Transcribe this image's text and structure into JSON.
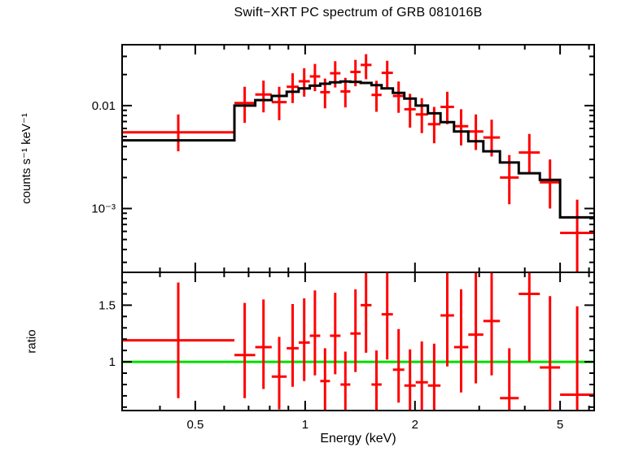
{
  "chart_data": [
    {
      "type": "scatter",
      "panel": "spectrum",
      "title": "Swift−XRT PC spectrum of GRB 081016B",
      "xlabel": "",
      "ylabel": "counts s⁻¹ keV⁻¹",
      "xscale": "log",
      "yscale": "log",
      "xlim": [
        0.315,
        6.2
      ],
      "ylim": [
        0.00024,
        0.039
      ],
      "x_ticks": [
        0.5,
        1,
        2,
        5
      ],
      "x_tick_labels": [
        "0.5",
        "1",
        "2",
        "5"
      ],
      "x_minor_ticks": [
        0.4,
        0.6,
        0.7,
        0.8,
        0.9,
        3,
        4,
        6
      ],
      "y_ticks": [
        0.001,
        0.01
      ],
      "y_tick_labels": [
        "10⁻³",
        "0.01"
      ],
      "y_minor_ticks": [
        0.0003,
        0.0004,
        0.0005,
        0.0006,
        0.0007,
        0.0008,
        0.0009,
        0.002,
        0.003,
        0.004,
        0.005,
        0.006,
        0.007,
        0.008,
        0.009,
        0.02,
        0.03
      ],
      "grid": false,
      "legend": null,
      "colors": {
        "data": "#ff0000",
        "model": "#000000"
      },
      "series": [
        {
          "name": "data",
          "style": "errorbar",
          "color": "#ff0000",
          "points": [
            [
              0.449,
              0.315,
              0.64,
              0.0055,
              0.0036,
              0.0082
            ],
            [
              0.683,
              0.64,
              0.73,
              0.0106,
              0.0068,
              0.0152
            ],
            [
              0.769,
              0.73,
              0.81,
              0.0128,
              0.0086,
              0.0175
            ],
            [
              0.849,
              0.81,
              0.89,
              0.0108,
              0.0072,
              0.0152
            ],
            [
              0.924,
              0.89,
              0.96,
              0.0152,
              0.0106,
              0.0206
            ],
            [
              0.994,
              0.96,
              1.03,
              0.0172,
              0.0122,
              0.023
            ],
            [
              1.064,
              1.03,
              1.1,
              0.0192,
              0.0138,
              0.0254
            ],
            [
              1.134,
              1.1,
              1.17,
              0.0135,
              0.0094,
              0.0183
            ],
            [
              1.209,
              1.17,
              1.25,
              0.0206,
              0.015,
              0.027
            ],
            [
              1.289,
              1.25,
              1.33,
              0.0137,
              0.0096,
              0.0186
            ],
            [
              1.374,
              1.33,
              1.42,
              0.0212,
              0.0154,
              0.0278
            ],
            [
              1.469,
              1.42,
              1.52,
              0.0248,
              0.018,
              0.0316
            ],
            [
              1.569,
              1.52,
              1.62,
              0.0127,
              0.0087,
              0.0174
            ],
            [
              1.679,
              1.62,
              1.74,
              0.0208,
              0.015,
              0.0272
            ],
            [
              1.804,
              1.74,
              1.87,
              0.0124,
              0.0085,
              0.0171
            ],
            [
              1.939,
              1.87,
              2.01,
              0.0092,
              0.0061,
              0.013
            ],
            [
              2.088,
              2.01,
              2.17,
              0.0082,
              0.0054,
              0.0118
            ],
            [
              2.258,
              2.17,
              2.35,
              0.0066,
              0.0043,
              0.0097
            ],
            [
              2.453,
              2.35,
              2.56,
              0.0097,
              0.0066,
              0.0136
            ],
            [
              2.677,
              2.56,
              2.8,
              0.0063,
              0.0041,
              0.0092
            ],
            [
              2.937,
              2.8,
              3.08,
              0.0056,
              0.0037,
              0.0082
            ],
            [
              3.246,
              3.08,
              3.42,
              0.0049,
              0.0032,
              0.0073
            ],
            [
              3.629,
              3.42,
              3.85,
              0.002,
              0.0011,
              0.0033
            ],
            [
              4.116,
              3.85,
              4.4,
              0.0035,
              0.0022,
              0.0053
            ],
            [
              4.69,
              4.4,
              5.0,
              0.0018,
              0.001,
              0.003
            ],
            [
              5.568,
              5.0,
              6.2,
              0.00058,
              0.00024,
              0.00122
            ]
          ]
        },
        {
          "name": "model",
          "style": "step",
          "color": "#000000",
          "bins": [
            [
              0.315,
              0.64,
              0.0046
            ],
            [
              0.64,
              0.73,
              0.01
            ],
            [
              0.73,
              0.81,
              0.0113
            ],
            [
              0.81,
              0.89,
              0.0124
            ],
            [
              0.89,
              0.96,
              0.0136
            ],
            [
              0.96,
              1.03,
              0.0147
            ],
            [
              1.03,
              1.1,
              0.0156
            ],
            [
              1.1,
              1.17,
              0.0163
            ],
            [
              1.17,
              1.25,
              0.0168
            ],
            [
              1.25,
              1.33,
              0.0171
            ],
            [
              1.33,
              1.42,
              0.017
            ],
            [
              1.42,
              1.52,
              0.0166
            ],
            [
              1.52,
              1.62,
              0.0158
            ],
            [
              1.62,
              1.74,
              0.0147
            ],
            [
              1.74,
              1.87,
              0.0133
            ],
            [
              1.87,
              2.01,
              0.0117
            ],
            [
              2.01,
              2.17,
              0.01
            ],
            [
              2.17,
              2.35,
              0.0084
            ],
            [
              2.35,
              2.56,
              0.0069
            ],
            [
              2.56,
              2.8,
              0.0056
            ],
            [
              2.8,
              3.08,
              0.0045
            ],
            [
              3.08,
              3.42,
              0.0036
            ],
            [
              3.42,
              3.85,
              0.0028
            ],
            [
              3.85,
              4.4,
              0.0022
            ],
            [
              4.4,
              5.0,
              0.0019
            ],
            [
              5.0,
              6.2,
              0.00082
            ]
          ]
        }
      ]
    },
    {
      "type": "scatter",
      "panel": "ratio",
      "title": "",
      "xlabel": "Energy (keV)",
      "ylabel": "ratio",
      "xscale": "log",
      "yscale": "linear",
      "xlim": [
        0.315,
        6.2
      ],
      "ylim": [
        0.57,
        1.79
      ],
      "x_ticks": [
        0.5,
        1,
        2,
        5
      ],
      "x_tick_labels": [
        "0.5",
        "1",
        "2",
        "5"
      ],
      "x_minor_ticks": [
        0.4,
        0.6,
        0.7,
        0.8,
        0.9,
        3,
        4,
        6
      ],
      "y_ticks": [
        1,
        1.5
      ],
      "y_tick_labels": [
        "1",
        "1.5"
      ],
      "y_minor_ticks": [
        0.6,
        0.7,
        0.8,
        0.9,
        1.1,
        1.2,
        1.3,
        1.4,
        1.6,
        1.7
      ],
      "grid": false,
      "legend": null,
      "reference_line": {
        "y": 1.0,
        "color": "#00dd00"
      },
      "series": [
        {
          "name": "ratio",
          "style": "errorbar",
          "color": "#ff0000",
          "points": [
            [
              0.449,
              0.315,
              0.64,
              1.19,
              0.68,
              1.7
            ],
            [
              0.683,
              0.64,
              0.73,
              1.06,
              0.68,
              1.52
            ],
            [
              0.769,
              0.73,
              0.81,
              1.13,
              0.76,
              1.55
            ],
            [
              0.849,
              0.81,
              0.89,
              0.87,
              0.58,
              1.22
            ],
            [
              0.924,
              0.89,
              0.96,
              1.12,
              0.78,
              1.51
            ],
            [
              0.994,
              0.96,
              1.03,
              1.17,
              0.83,
              1.56
            ],
            [
              1.064,
              1.03,
              1.1,
              1.23,
              0.88,
              1.63
            ],
            [
              1.134,
              1.1,
              1.17,
              0.83,
              0.55,
              1.12
            ],
            [
              1.209,
              1.17,
              1.25,
              1.23,
              0.89,
              1.61
            ],
            [
              1.289,
              1.25,
              1.33,
              0.8,
              0.52,
              1.09
            ],
            [
              1.374,
              1.33,
              1.42,
              1.25,
              0.91,
              1.64
            ],
            [
              1.469,
              1.42,
              1.52,
              1.5,
              1.08,
              1.9
            ],
            [
              1.569,
              1.52,
              1.62,
              0.8,
              0.55,
              1.1
            ],
            [
              1.679,
              1.62,
              1.74,
              1.42,
              1.02,
              1.85
            ],
            [
              1.804,
              1.74,
              1.87,
              0.93,
              0.64,
              1.29
            ],
            [
              1.939,
              1.87,
              2.01,
              0.79,
              0.52,
              1.11
            ],
            [
              2.088,
              2.01,
              2.17,
              0.82,
              0.54,
              1.18
            ],
            [
              2.258,
              2.17,
              2.35,
              0.79,
              0.51,
              1.16
            ],
            [
              2.453,
              2.35,
              2.56,
              1.41,
              0.96,
              1.97
            ],
            [
              2.677,
              2.56,
              2.8,
              1.13,
              0.73,
              1.64
            ],
            [
              2.937,
              2.8,
              3.08,
              1.24,
              0.81,
              1.81
            ],
            [
              3.246,
              3.08,
              3.42,
              1.36,
              0.88,
              2.02
            ],
            [
              3.629,
              3.42,
              3.85,
              0.68,
              0.38,
              1.12
            ],
            [
              4.116,
              3.85,
              4.4,
              1.6,
              1.0,
              2.4
            ],
            [
              4.69,
              4.4,
              5.0,
              0.95,
              0.53,
              1.58
            ],
            [
              5.568,
              5.0,
              6.2,
              0.71,
              0.3,
              1.49
            ]
          ]
        }
      ]
    }
  ]
}
